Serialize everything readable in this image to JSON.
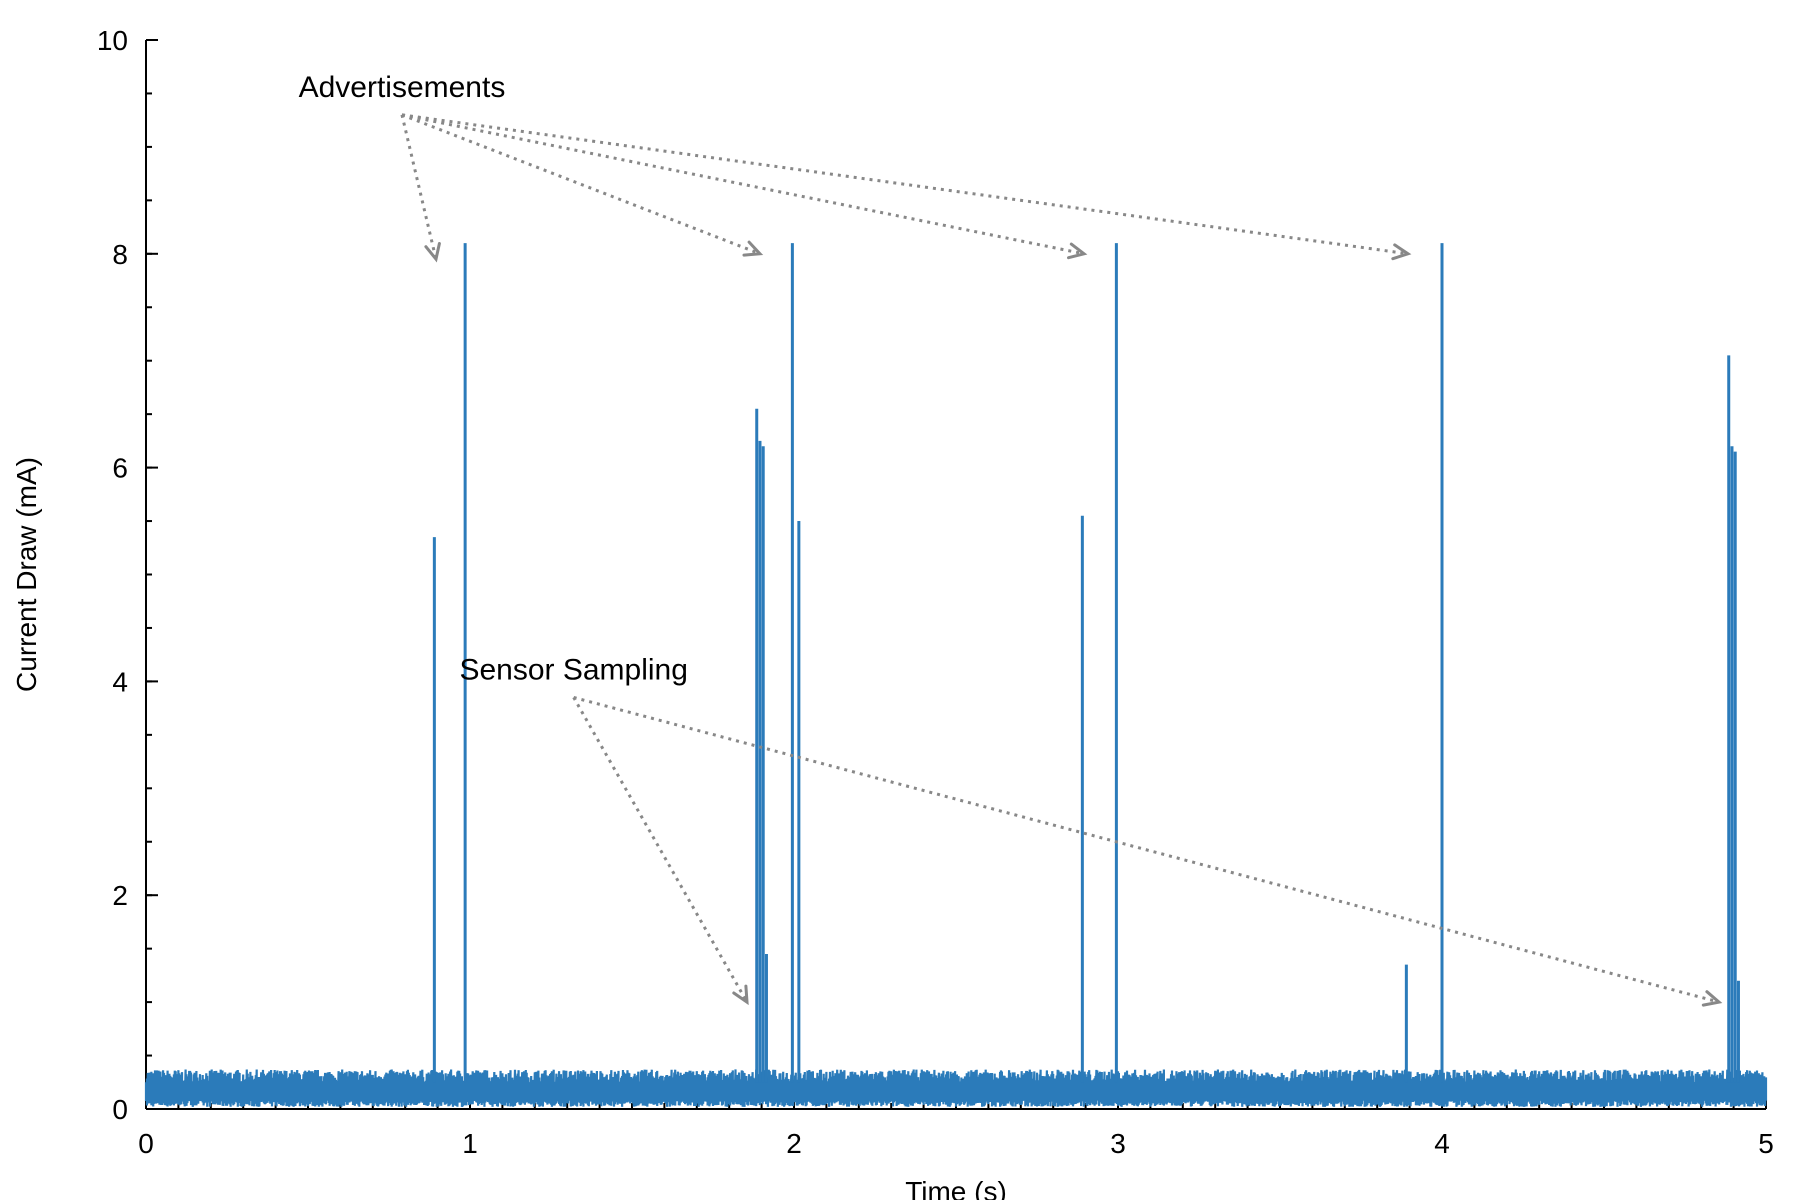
{
  "chart_data": {
    "type": "line",
    "title": "",
    "xlabel": "Time (s)",
    "ylabel": "Current Draw (mA)",
    "xlim": [
      0,
      5
    ],
    "ylim": [
      0,
      10
    ],
    "xticks": [
      0,
      1,
      2,
      3,
      4,
      5
    ],
    "yticks": [
      0,
      2,
      4,
      6,
      8,
      10
    ],
    "xtick_labels": [
      "0",
      "1",
      "2",
      "3",
      "4",
      "5"
    ],
    "ytick_labels": [
      "0",
      "2",
      "4",
      "6",
      "8",
      "10"
    ],
    "grid": false,
    "legend": "none",
    "series": [
      {
        "color": "#2b7bba",
        "baseline_mA": 0.25,
        "spikes": [
          {
            "x": 0.89,
            "y": 5.35
          },
          {
            "x": 0.985,
            "y": 8.1
          },
          {
            "x": 1.885,
            "y": 6.55
          },
          {
            "x": 1.895,
            "y": 6.25
          },
          {
            "x": 1.905,
            "y": 6.2
          },
          {
            "x": 1.915,
            "y": 1.45
          },
          {
            "x": 1.995,
            "y": 8.1
          },
          {
            "x": 2.015,
            "y": 5.5
          },
          {
            "x": 2.89,
            "y": 5.55
          },
          {
            "x": 2.995,
            "y": 8.1
          },
          {
            "x": 3.89,
            "y": 1.35
          },
          {
            "x": 4.0,
            "y": 8.1
          },
          {
            "x": 4.885,
            "y": 7.05
          },
          {
            "x": 4.895,
            "y": 6.2
          },
          {
            "x": 4.905,
            "y": 6.15
          },
          {
            "x": 4.915,
            "y": 1.2
          }
        ]
      }
    ],
    "annotations": [
      {
        "text": "Advertisements",
        "anchor": {
          "x": 0.79,
          "y": 9.3
        },
        "targets": [
          {
            "x": 0.895,
            "y": 7.95
          },
          {
            "x": 1.895,
            "y": 8.0
          },
          {
            "x": 2.895,
            "y": 8.0
          },
          {
            "x": 3.895,
            "y": 8.0
          }
        ]
      },
      {
        "text": "Sensor Sampling",
        "anchor": {
          "x": 1.32,
          "y": 3.85
        },
        "targets": [
          {
            "x": 1.855,
            "y": 1.0
          },
          {
            "x": 4.855,
            "y": 1.0
          }
        ]
      }
    ]
  }
}
